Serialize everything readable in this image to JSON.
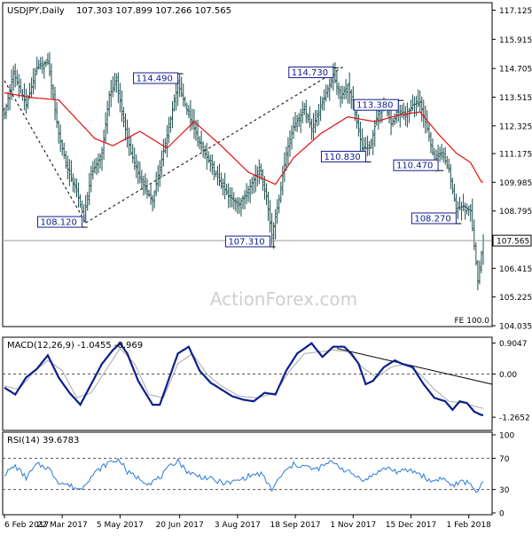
{
  "chart_data": [
    {
      "type": "candlestick",
      "title": "USDJPY,Daily",
      "ohlc_header": "107.303 107.899 107.266 107.565",
      "watermark": "ActionForex.com",
      "fe_label": "FE 100.0",
      "last_price": 107.565,
      "last_price_label": "107.565",
      "ylim": [
        104.035,
        117.4
      ],
      "y_ticks": [
        117.125,
        115.915,
        114.705,
        113.515,
        112.325,
        111.175,
        109.985,
        108.795,
        107.565,
        106.415,
        105.225,
        104.035
      ],
      "y_tick_labels": [
        "117.125",
        "115.915",
        "114.705",
        "113.515",
        "112.325",
        "111.175",
        "109.985",
        "108.795",
        "107.565",
        "106.415",
        "105.225",
        "104.035"
      ],
      "x_tick_labels": [
        "6 Feb 2017",
        "22 Mar 2017",
        "5 May 2017",
        "20 Jun 2017",
        "3 Aug 2017",
        "18 Sep 2017",
        "1 Nov 2017",
        "15 Dec 2017",
        "1 Feb 2018"
      ],
      "x_tick_index": [
        0,
        32,
        64,
        97,
        129,
        161,
        193,
        225,
        257
      ],
      "annotations": [
        {
          "label": "108.120",
          "index": 43,
          "value": 108.12
        },
        {
          "label": "114.490",
          "index": 96,
          "value": 114.49
        },
        {
          "label": "107.310",
          "index": 147,
          "value": 107.31
        },
        {
          "label": "114.730",
          "index": 182,
          "value": 114.73
        },
        {
          "label": "110.830",
          "index": 200,
          "value": 110.83
        },
        {
          "label": "113.380",
          "index": 218,
          "value": 113.38
        },
        {
          "label": "110.470",
          "index": 240,
          "value": 110.47
        },
        {
          "label": "108.270",
          "index": 250,
          "value": 108.27
        }
      ],
      "close_keypoints": [
        [
          0,
          112.8
        ],
        [
          5,
          114.5
        ],
        [
          12,
          113.2
        ],
        [
          18,
          114.7
        ],
        [
          24,
          115.0
        ],
        [
          30,
          112.0
        ],
        [
          35,
          110.5
        ],
        [
          40,
          109.6
        ],
        [
          44,
          108.5
        ],
        [
          48,
          110.3
        ],
        [
          54,
          111.2
        ],
        [
          58,
          113.6
        ],
        [
          62,
          114.2
        ],
        [
          66,
          112.5
        ],
        [
          70,
          111.2
        ],
        [
          76,
          110.0
        ],
        [
          82,
          109.2
        ],
        [
          86,
          110.6
        ],
        [
          92,
          112.6
        ],
        [
          96,
          114.1
        ],
        [
          100,
          113.2
        ],
        [
          104,
          112.4
        ],
        [
          108,
          111.6
        ],
        [
          112,
          111.0
        ],
        [
          118,
          110.2
        ],
        [
          124,
          109.4
        ],
        [
          130,
          109.1
        ],
        [
          136,
          109.8
        ],
        [
          141,
          110.6
        ],
        [
          145,
          109.4
        ],
        [
          148,
          107.8
        ],
        [
          152,
          109.3
        ],
        [
          156,
          111.2
        ],
        [
          160,
          112.3
        ],
        [
          166,
          113.0
        ],
        [
          170,
          112.2
        ],
        [
          174,
          112.9
        ],
        [
          178,
          113.7
        ],
        [
          182,
          114.4
        ],
        [
          186,
          113.5
        ],
        [
          190,
          114.0
        ],
        [
          194,
          112.8
        ],
        [
          198,
          111.4
        ],
        [
          202,
          111.4
        ],
        [
          206,
          112.6
        ],
        [
          210,
          113.4
        ],
        [
          214,
          112.4
        ],
        [
          218,
          112.9
        ],
        [
          222,
          112.7
        ],
        [
          226,
          113.2
        ],
        [
          230,
          113.3
        ],
        [
          234,
          112.2
        ],
        [
          238,
          110.9
        ],
        [
          242,
          111.2
        ],
        [
          246,
          110.5
        ],
        [
          250,
          108.9
        ],
        [
          254,
          109.0
        ],
        [
          258,
          108.8
        ],
        [
          262,
          105.9
        ],
        [
          265,
          107.565
        ]
      ],
      "ma_keypoints": [
        [
          0,
          113.7
        ],
        [
          15,
          113.5
        ],
        [
          30,
          113.4
        ],
        [
          50,
          111.8
        ],
        [
          60,
          111.5
        ],
        [
          75,
          112.1
        ],
        [
          90,
          111.4
        ],
        [
          105,
          112.5
        ],
        [
          120,
          111.5
        ],
        [
          135,
          110.4
        ],
        [
          150,
          109.9
        ],
        [
          160,
          111.0
        ],
        [
          175,
          112.0
        ],
        [
          190,
          112.7
        ],
        [
          205,
          112.5
        ],
        [
          220,
          112.8
        ],
        [
          230,
          112.9
        ],
        [
          240,
          112.0
        ],
        [
          250,
          111.2
        ],
        [
          258,
          110.8
        ],
        [
          264,
          110.0
        ]
      ],
      "trendlines": [
        {
          "from": [
            0,
            114.2
          ],
          "to": [
            45,
            108.3
          ],
          "style": "dashed"
        },
        {
          "from": [
            45,
            108.3
          ],
          "to": [
            188,
            114.8
          ],
          "style": "dashed"
        }
      ]
    },
    {
      "type": "line",
      "title": "MACD(12,26,9) -1.0455 -0.969",
      "ylim": [
        -1.6,
        1.0
      ],
      "y_ticks": [
        0.9047,
        0.0,
        -1.2652
      ],
      "y_tick_labels": [
        "0.9047",
        "0.00",
        "-1.2652"
      ],
      "macd_keypoints": [
        [
          0,
          -0.4
        ],
        [
          6,
          -0.6
        ],
        [
          12,
          -0.1
        ],
        [
          18,
          0.15
        ],
        [
          24,
          0.55
        ],
        [
          30,
          -0.1
        ],
        [
          36,
          -0.55
        ],
        [
          42,
          -0.9
        ],
        [
          48,
          -0.3
        ],
        [
          54,
          0.3
        ],
        [
          60,
          0.7
        ],
        [
          64,
          0.9
        ],
        [
          68,
          0.6
        ],
        [
          74,
          -0.2
        ],
        [
          82,
          -0.9
        ],
        [
          86,
          -0.9
        ],
        [
          90,
          -0.3
        ],
        [
          96,
          0.6
        ],
        [
          102,
          0.8
        ],
        [
          108,
          0.1
        ],
        [
          114,
          -0.25
        ],
        [
          120,
          -0.45
        ],
        [
          126,
          -0.65
        ],
        [
          132,
          -0.75
        ],
        [
          138,
          -0.8
        ],
        [
          144,
          -0.55
        ],
        [
          150,
          -0.6
        ],
        [
          156,
          0.1
        ],
        [
          162,
          0.6
        ],
        [
          170,
          0.9
        ],
        [
          176,
          0.5
        ],
        [
          182,
          0.8
        ],
        [
          188,
          0.8
        ],
        [
          192,
          0.6
        ],
        [
          196,
          0.3
        ],
        [
          200,
          -0.3
        ],
        [
          204,
          -0.2
        ],
        [
          210,
          0.2
        ],
        [
          216,
          0.4
        ],
        [
          220,
          0.3
        ],
        [
          226,
          0.2
        ],
        [
          232,
          -0.3
        ],
        [
          238,
          -0.7
        ],
        [
          244,
          -0.8
        ],
        [
          248,
          -1.05
        ],
        [
          252,
          -0.8
        ],
        [
          256,
          -0.85
        ],
        [
          260,
          -1.1
        ],
        [
          264,
          -1.2
        ]
      ],
      "signal_keypoints": [
        [
          0,
          -0.35
        ],
        [
          8,
          -0.45
        ],
        [
          16,
          0.05
        ],
        [
          24,
          0.4
        ],
        [
          32,
          0.1
        ],
        [
          40,
          -0.7
        ],
        [
          48,
          -0.55
        ],
        [
          56,
          0.1
        ],
        [
          64,
          0.75
        ],
        [
          72,
          0.3
        ],
        [
          80,
          -0.6
        ],
        [
          88,
          -0.7
        ],
        [
          96,
          0.3
        ],
        [
          104,
          0.6
        ],
        [
          112,
          0.0
        ],
        [
          120,
          -0.35
        ],
        [
          130,
          -0.65
        ],
        [
          140,
          -0.7
        ],
        [
          150,
          -0.55
        ],
        [
          158,
          0.1
        ],
        [
          166,
          0.6
        ],
        [
          174,
          0.65
        ],
        [
          182,
          0.7
        ],
        [
          190,
          0.65
        ],
        [
          198,
          0.2
        ],
        [
          206,
          -0.1
        ],
        [
          214,
          0.2
        ],
        [
          222,
          0.3
        ],
        [
          230,
          0.0
        ],
        [
          238,
          -0.45
        ],
        [
          246,
          -0.8
        ],
        [
          254,
          -0.85
        ],
        [
          264,
          -1.0
        ]
      ],
      "trendline": {
        "from": [
          184,
          0.75
        ],
        "to": [
          265,
          -0.3
        ]
      }
    },
    {
      "type": "line",
      "title": "RSI(14) 39.6783",
      "ylim": [
        0,
        100
      ],
      "y_ticks": [
        100,
        70,
        30,
        0
      ],
      "y_tick_labels": [
        "100",
        "70",
        "30",
        "0"
      ],
      "levels": [
        70,
        30
      ],
      "rsi_keypoints": [
        [
          0,
          50
        ],
        [
          6,
          60
        ],
        [
          12,
          45
        ],
        [
          18,
          62
        ],
        [
          24,
          58
        ],
        [
          30,
          40
        ],
        [
          36,
          35
        ],
        [
          42,
          30
        ],
        [
          46,
          42
        ],
        [
          52,
          55
        ],
        [
          58,
          65
        ],
        [
          64,
          68
        ],
        [
          68,
          52
        ],
        [
          74,
          45
        ],
        [
          80,
          38
        ],
        [
          86,
          45
        ],
        [
          92,
          60
        ],
        [
          96,
          68
        ],
        [
          100,
          55
        ],
        [
          106,
          48
        ],
        [
          112,
          45
        ],
        [
          118,
          40
        ],
        [
          124,
          38
        ],
        [
          130,
          42
        ],
        [
          136,
          48
        ],
        [
          142,
          50
        ],
        [
          148,
          30
        ],
        [
          154,
          50
        ],
        [
          160,
          62
        ],
        [
          166,
          60
        ],
        [
          172,
          55
        ],
        [
          178,
          62
        ],
        [
          182,
          66
        ],
        [
          188,
          55
        ],
        [
          194,
          48
        ],
        [
          200,
          42
        ],
        [
          206,
          52
        ],
        [
          212,
          58
        ],
        [
          218,
          52
        ],
        [
          224,
          55
        ],
        [
          230,
          50
        ],
        [
          236,
          40
        ],
        [
          242,
          45
        ],
        [
          248,
          35
        ],
        [
          254,
          40
        ],
        [
          258,
          38
        ],
        [
          262,
          25
        ],
        [
          265,
          39.7
        ]
      ]
    }
  ]
}
